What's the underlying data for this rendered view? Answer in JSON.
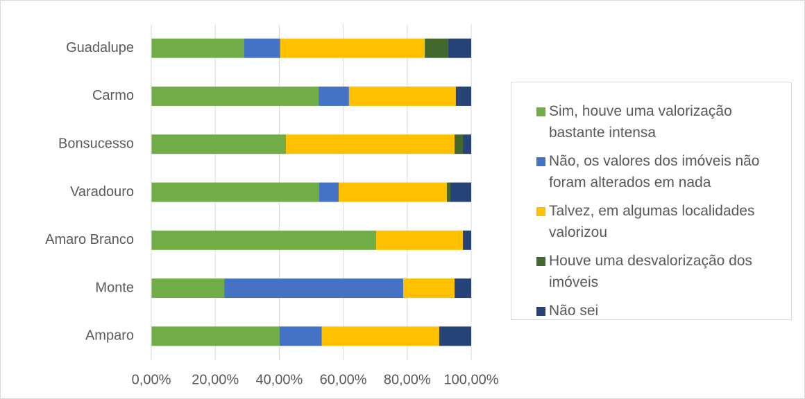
{
  "chart_data": {
    "type": "stacked_barh",
    "categories": [
      "Guadalupe",
      "Carmo",
      "Bonsucesso",
      "Varadouro",
      "Amaro Branco",
      "Monte",
      "Amparo"
    ],
    "series": [
      {
        "name": "Sim, houve uma valorização bastante intensa",
        "color": "#70ad47",
        "values": [
          29.0,
          52.3,
          42.1,
          52.5,
          70.3,
          22.8,
          40.1
        ]
      },
      {
        "name": "Não, os valores dos imóveis não foram alterados em nada",
        "color": "#4472c4",
        "values": [
          11.3,
          9.5,
          0,
          6.1,
          0,
          56.0,
          13.2
        ]
      },
      {
        "name": "Talvez, em algumas localidades valorizou",
        "color": "#ffc000",
        "values": [
          45.2,
          33.4,
          52.7,
          33.8,
          27.1,
          16.0,
          36.7
        ]
      },
      {
        "name": "Houve uma desvalorização dos imóveis",
        "color": "#43682b",
        "values": [
          7.3,
          0,
          2.6,
          1.1,
          0,
          0,
          0
        ]
      },
      {
        "name": "Não sei",
        "color": "#264478",
        "values": [
          7.2,
          4.8,
          2.6,
          6.5,
          2.6,
          5.2,
          10.0
        ]
      }
    ],
    "xlim": [
      0,
      100
    ],
    "xticks": [
      {
        "value": 0,
        "label": "0,00%"
      },
      {
        "value": 20,
        "label": "20,00%"
      },
      {
        "value": 40,
        "label": "40,00%"
      },
      {
        "value": 60,
        "label": "60,00%"
      },
      {
        "value": 80,
        "label": "80,00%"
      },
      {
        "value": 100,
        "label": "100,00%"
      }
    ],
    "grid": true,
    "legend": "right"
  }
}
